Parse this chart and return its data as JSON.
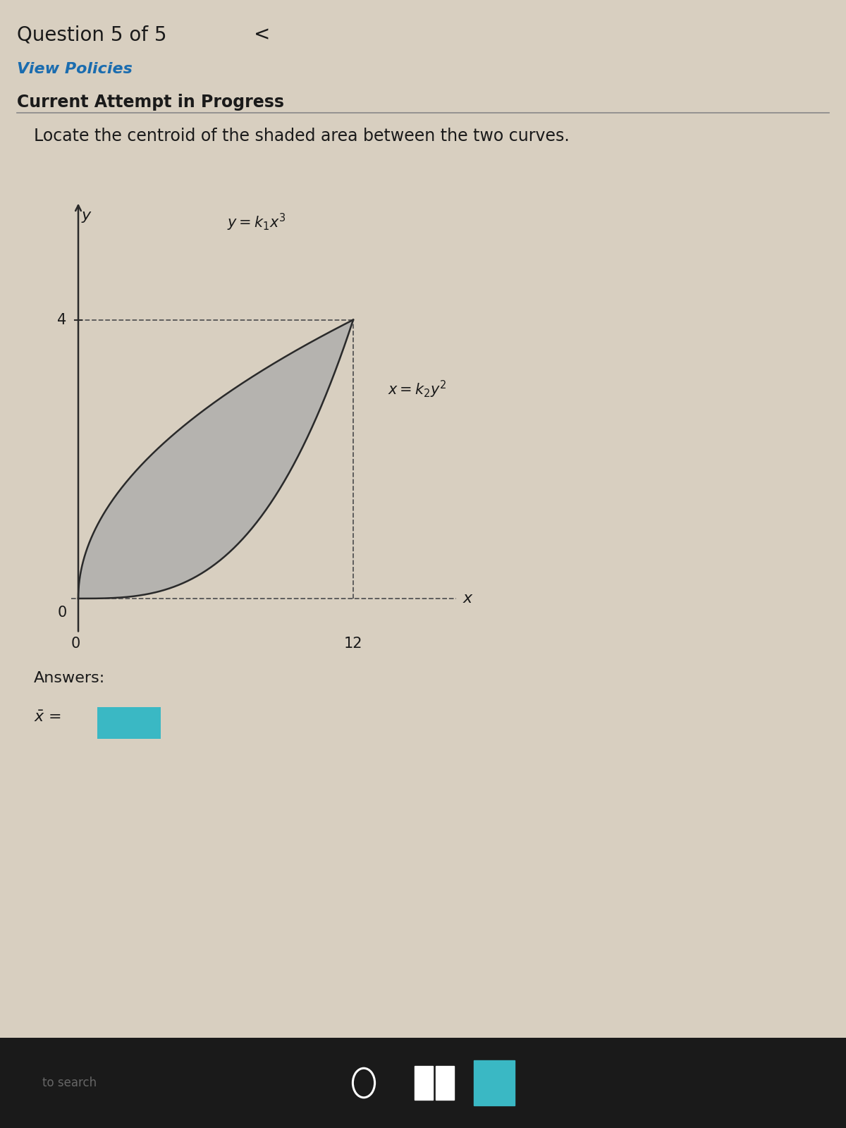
{
  "title_question": "Question 5 of 5",
  "title_nav": "<",
  "view_policies": "View Policies",
  "current_attempt": "Current Attempt in Progress",
  "problem_text": "Locate the centroid of the shaded area between the two curves.",
  "answers_label": "Answers:",
  "curve1_label": "y = k_1 x^3",
  "curve2_label": "x = k_2 y^2",
  "x_axis_label": "x",
  "y_axis_label": "y",
  "x_tick_val": 12,
  "y_tick_val": 4,
  "page_bg": "#d8cfc0",
  "shaded_color": "#aaaaaa",
  "dashed_color": "#555555",
  "curve_color": "#2a2a2a",
  "text_color": "#1a1a1a",
  "link_color": "#1a6caf",
  "input_color": "#3ab8c4",
  "taskbar_bg": "#1a1a1a",
  "taskbar_text": "#666666"
}
